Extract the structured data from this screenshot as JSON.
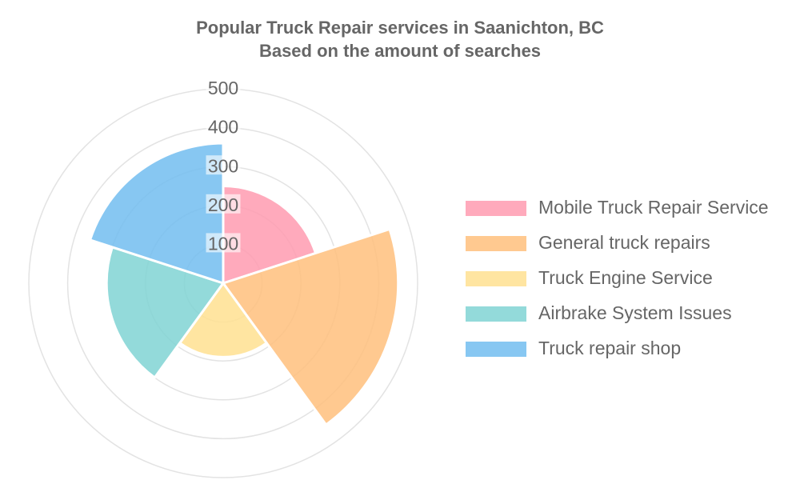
{
  "chart_data": {
    "type": "polarArea",
    "title": "Popular Truck Repair services in Saanichton, BC",
    "subtitle": "Based on the amount of searches",
    "categories": [
      "Mobile Truck Repair Service",
      "General truck repairs",
      "Truck Engine Service",
      "Airbrake System Issues",
      "Truck repair shop"
    ],
    "values": [
      250,
      450,
      190,
      300,
      360
    ],
    "colors": [
      "#ff9bb0",
      "#ffbf7c",
      "#ffe090",
      "#80d3d3",
      "#72bdf0"
    ],
    "rlim": [
      0,
      500
    ],
    "r_ticks": [
      "100",
      "200",
      "300",
      "400",
      "500"
    ],
    "grid": true,
    "legend_position": "right"
  }
}
